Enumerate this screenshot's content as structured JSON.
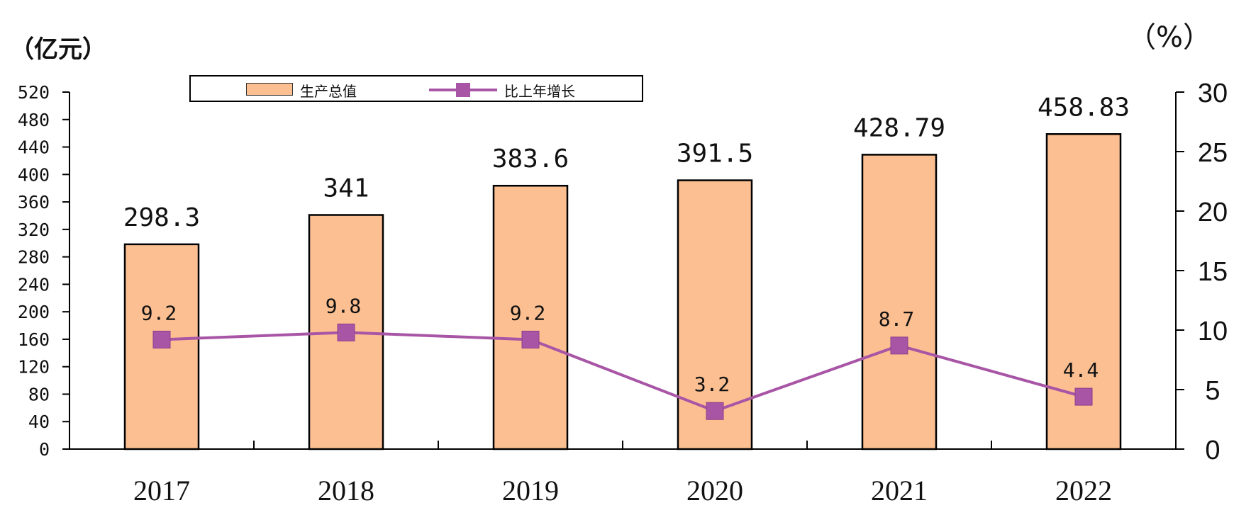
{
  "chart_data": {
    "type": "bar",
    "categories": [
      "2017",
      "2018",
      "2019",
      "2020",
      "2021",
      "2022"
    ],
    "series": [
      {
        "name": "生产总值",
        "type": "bar",
        "axis": "left",
        "values": [
          298.3,
          341,
          383.6,
          391.5,
          428.79,
          458.83
        ],
        "labels": [
          "298.3",
          "341",
          "383.6",
          "391.5",
          "428.79",
          "458.83"
        ],
        "color": "#fbbf92"
      },
      {
        "name": "比上年增长",
        "type": "line",
        "axis": "right",
        "values": [
          9.2,
          9.8,
          9.2,
          3.2,
          8.7,
          4.4
        ],
        "labels": [
          "9.2",
          "9.8",
          "9.2",
          "3.2",
          "8.7",
          "4.4"
        ],
        "color": "#a855a6"
      }
    ],
    "y_left": {
      "label": "（亿元）",
      "ylim": [
        0,
        520
      ],
      "ticks": [
        "0",
        "40",
        "80",
        "120",
        "160",
        "200",
        "240",
        "280",
        "320",
        "360",
        "400",
        "440",
        "480",
        "520"
      ]
    },
    "y_right": {
      "label": "（%）",
      "ylim": [
        0,
        30
      ],
      "ticks": [
        "0",
        "5",
        "10",
        "15",
        "20",
        "25",
        "30"
      ]
    },
    "legend": {
      "position": "top-left",
      "entries": [
        "生产总值",
        "比上年增长"
      ]
    },
    "grid": false,
    "title": ""
  }
}
